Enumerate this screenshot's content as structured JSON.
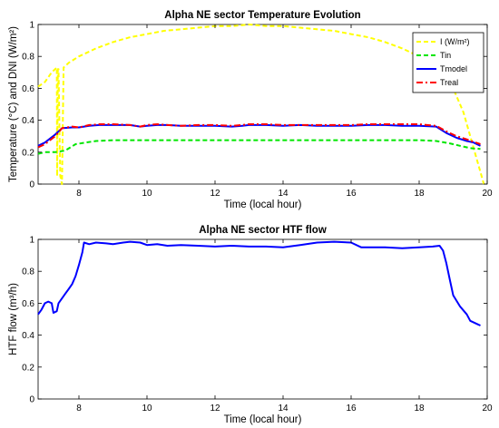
{
  "chart_data": [
    {
      "type": "line",
      "title": "Alpha NE sector Temperature Evolution",
      "xlabel": "Time (local hour)",
      "ylabel": "Temperature (°C) and DNI (W/m²)",
      "xlim": [
        6.8,
        20
      ],
      "ylim": [
        0,
        1
      ],
      "xticks": [
        "8",
        "10",
        "12",
        "14",
        "16",
        "18",
        "20"
      ],
      "yticks": [
        "0",
        "0.2",
        "0.4",
        "0.6",
        "0.8",
        "1"
      ],
      "grid": false,
      "legend_position": "top-right",
      "series": [
        {
          "name": "I (W/m²)",
          "color": "#ffff00",
          "style": "dashed",
          "points": [
            [
              6.8,
              0.61
            ],
            [
              7.0,
              0.64
            ],
            [
              7.2,
              0.7
            ],
            [
              7.35,
              0.73
            ],
            [
              7.36,
              0.05
            ],
            [
              7.38,
              0.72
            ],
            [
              7.4,
              0.72
            ],
            [
              7.45,
              0.05
            ],
            [
              7.5,
              0.0
            ],
            [
              7.55,
              0.73
            ],
            [
              7.7,
              0.76
            ],
            [
              8.0,
              0.8
            ],
            [
              8.5,
              0.85
            ],
            [
              9.0,
              0.89
            ],
            [
              9.5,
              0.92
            ],
            [
              10.0,
              0.94
            ],
            [
              10.5,
              0.96
            ],
            [
              11.0,
              0.97
            ],
            [
              11.5,
              0.98
            ],
            [
              12.0,
              0.99
            ],
            [
              12.5,
              0.99
            ],
            [
              13.0,
              1.0
            ],
            [
              13.5,
              0.99
            ],
            [
              14.0,
              0.99
            ],
            [
              14.5,
              0.98
            ],
            [
              15.0,
              0.97
            ],
            [
              15.5,
              0.96
            ],
            [
              16.0,
              0.94
            ],
            [
              16.5,
              0.92
            ],
            [
              17.0,
              0.89
            ],
            [
              17.5,
              0.85
            ],
            [
              18.0,
              0.8
            ],
            [
              18.5,
              0.72
            ],
            [
              19.0,
              0.6
            ],
            [
              19.3,
              0.45
            ],
            [
              19.5,
              0.3
            ],
            [
              19.7,
              0.15
            ],
            [
              19.9,
              0.0
            ]
          ]
        },
        {
          "name": "Tin",
          "color": "#00e600",
          "style": "dashed",
          "points": [
            [
              6.8,
              0.19
            ],
            [
              7.0,
              0.2
            ],
            [
              7.3,
              0.2
            ],
            [
              7.6,
              0.21
            ],
            [
              7.9,
              0.25
            ],
            [
              8.2,
              0.26
            ],
            [
              8.5,
              0.27
            ],
            [
              9.0,
              0.275
            ],
            [
              10.0,
              0.275
            ],
            [
              12.0,
              0.275
            ],
            [
              14.0,
              0.275
            ],
            [
              16.0,
              0.275
            ],
            [
              18.0,
              0.275
            ],
            [
              18.5,
              0.27
            ],
            [
              18.9,
              0.255
            ],
            [
              19.2,
              0.24
            ],
            [
              19.5,
              0.225
            ],
            [
              19.8,
              0.22
            ]
          ]
        },
        {
          "name": "Tmodel",
          "color": "#0000ff",
          "style": "solid",
          "points": [
            [
              6.8,
              0.24
            ],
            [
              7.0,
              0.26
            ],
            [
              7.3,
              0.31
            ],
            [
              7.5,
              0.35
            ],
            [
              7.8,
              0.355
            ],
            [
              8.0,
              0.355
            ],
            [
              8.3,
              0.365
            ],
            [
              8.6,
              0.37
            ],
            [
              9.0,
              0.37
            ],
            [
              9.5,
              0.37
            ],
            [
              9.8,
              0.36
            ],
            [
              10.0,
              0.365
            ],
            [
              10.3,
              0.37
            ],
            [
              10.6,
              0.37
            ],
            [
              11.0,
              0.365
            ],
            [
              11.5,
              0.365
            ],
            [
              12.0,
              0.365
            ],
            [
              12.5,
              0.36
            ],
            [
              12.8,
              0.365
            ],
            [
              13.0,
              0.37
            ],
            [
              13.5,
              0.37
            ],
            [
              14.0,
              0.365
            ],
            [
              14.5,
              0.37
            ],
            [
              15.0,
              0.365
            ],
            [
              15.5,
              0.365
            ],
            [
              16.0,
              0.365
            ],
            [
              16.5,
              0.37
            ],
            [
              17.0,
              0.37
            ],
            [
              17.5,
              0.365
            ],
            [
              18.0,
              0.365
            ],
            [
              18.5,
              0.36
            ],
            [
              18.8,
              0.32
            ],
            [
              19.1,
              0.29
            ],
            [
              19.4,
              0.27
            ],
            [
              19.6,
              0.26
            ],
            [
              19.8,
              0.24
            ]
          ]
        },
        {
          "name": "Treal",
          "color": "#ff0000",
          "style": "dashdot",
          "points": [
            [
              6.8,
              0.23
            ],
            [
              7.0,
              0.25
            ],
            [
              7.3,
              0.3
            ],
            [
              7.5,
              0.35
            ],
            [
              7.8,
              0.36
            ],
            [
              8.0,
              0.355
            ],
            [
              8.3,
              0.37
            ],
            [
              8.6,
              0.375
            ],
            [
              9.0,
              0.375
            ],
            [
              9.5,
              0.37
            ],
            [
              9.8,
              0.36
            ],
            [
              10.0,
              0.37
            ],
            [
              10.3,
              0.375
            ],
            [
              10.6,
              0.37
            ],
            [
              11.0,
              0.365
            ],
            [
              11.5,
              0.37
            ],
            [
              12.0,
              0.37
            ],
            [
              12.5,
              0.365
            ],
            [
              12.8,
              0.37
            ],
            [
              13.0,
              0.375
            ],
            [
              13.5,
              0.375
            ],
            [
              14.0,
              0.37
            ],
            [
              14.5,
              0.37
            ],
            [
              15.0,
              0.37
            ],
            [
              15.5,
              0.37
            ],
            [
              16.0,
              0.37
            ],
            [
              16.5,
              0.375
            ],
            [
              17.0,
              0.375
            ],
            [
              17.5,
              0.375
            ],
            [
              18.0,
              0.375
            ],
            [
              18.5,
              0.365
            ],
            [
              18.8,
              0.33
            ],
            [
              19.1,
              0.3
            ],
            [
              19.4,
              0.28
            ],
            [
              19.6,
              0.265
            ],
            [
              19.8,
              0.25
            ]
          ]
        }
      ]
    },
    {
      "type": "line",
      "title": "Alpha NE sector HTF flow",
      "xlabel": "Time (local hour)",
      "ylabel": "HTF flow (m³/h)",
      "xlim": [
        6.8,
        20
      ],
      "ylim": [
        0,
        1
      ],
      "xticks": [
        "8",
        "10",
        "12",
        "14",
        "16",
        "18",
        "20"
      ],
      "yticks": [
        "0",
        "0.2",
        "0.4",
        "0.6",
        "0.8",
        "1"
      ],
      "grid": false,
      "series": [
        {
          "color": "#0000ff",
          "style": "solid",
          "points": [
            [
              6.8,
              0.53
            ],
            [
              6.9,
              0.56
            ],
            [
              7.0,
              0.6
            ],
            [
              7.1,
              0.61
            ],
            [
              7.2,
              0.6
            ],
            [
              7.25,
              0.54
            ],
            [
              7.35,
              0.55
            ],
            [
              7.4,
              0.6
            ],
            [
              7.5,
              0.63
            ],
            [
              7.6,
              0.66
            ],
            [
              7.7,
              0.69
            ],
            [
              7.8,
              0.72
            ],
            [
              7.9,
              0.77
            ],
            [
              8.0,
              0.84
            ],
            [
              8.1,
              0.92
            ],
            [
              8.15,
              0.98
            ],
            [
              8.3,
              0.97
            ],
            [
              8.5,
              0.98
            ],
            [
              8.8,
              0.975
            ],
            [
              9.0,
              0.97
            ],
            [
              9.3,
              0.98
            ],
            [
              9.5,
              0.985
            ],
            [
              9.8,
              0.98
            ],
            [
              10.0,
              0.965
            ],
            [
              10.3,
              0.97
            ],
            [
              10.6,
              0.96
            ],
            [
              11.0,
              0.965
            ],
            [
              11.5,
              0.96
            ],
            [
              12.0,
              0.955
            ],
            [
              12.5,
              0.96
            ],
            [
              13.0,
              0.955
            ],
            [
              13.5,
              0.955
            ],
            [
              14.0,
              0.95
            ],
            [
              14.5,
              0.965
            ],
            [
              15.0,
              0.98
            ],
            [
              15.5,
              0.985
            ],
            [
              16.0,
              0.98
            ],
            [
              16.3,
              0.95
            ],
            [
              16.6,
              0.95
            ],
            [
              17.0,
              0.95
            ],
            [
              17.5,
              0.945
            ],
            [
              18.0,
              0.95
            ],
            [
              18.4,
              0.955
            ],
            [
              18.6,
              0.96
            ],
            [
              18.7,
              0.93
            ],
            [
              18.8,
              0.85
            ],
            [
              18.9,
              0.75
            ],
            [
              19.0,
              0.65
            ],
            [
              19.2,
              0.58
            ],
            [
              19.4,
              0.53
            ],
            [
              19.5,
              0.49
            ],
            [
              19.7,
              0.47
            ],
            [
              19.8,
              0.46
            ]
          ]
        }
      ]
    }
  ]
}
